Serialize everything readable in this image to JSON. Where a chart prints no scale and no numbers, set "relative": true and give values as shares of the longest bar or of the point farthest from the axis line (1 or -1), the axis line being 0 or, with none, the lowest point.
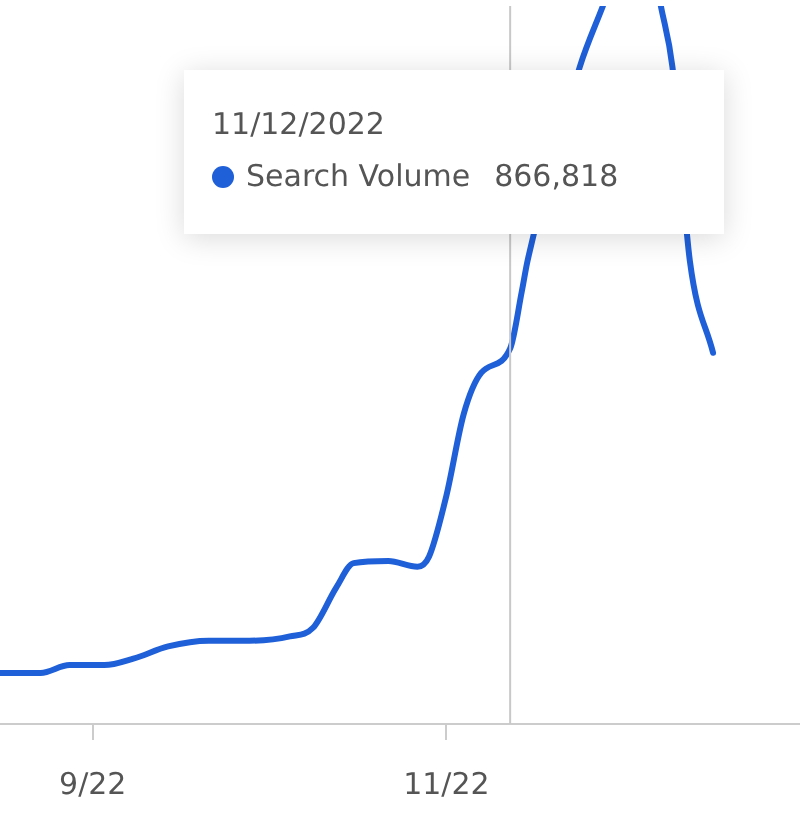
{
  "chart_data": {
    "type": "line",
    "relative": true,
    "x": [
      "2022-08-16",
      "2022-08-23",
      "2022-08-28",
      "2022-09-03",
      "2022-09-08",
      "2022-09-14",
      "2022-09-21",
      "2022-09-28",
      "2022-10-05",
      "2022-10-09",
      "2022-10-13",
      "2022-10-16",
      "2022-10-22",
      "2022-10-27",
      "2022-10-29",
      "2022-11-01",
      "2022-11-04",
      "2022-11-07",
      "2022-11-12",
      "2022-11-14",
      "2022-11-15",
      "2022-11-24",
      "2022-11-28",
      "2022-12-03",
      "2022-12-08",
      "2022-12-10",
      "2022-12-13",
      "2022-12-17"
    ],
    "series": [
      {
        "name": "Search Volume",
        "color": "#1f5fd8",
        "values": [
          0.071,
          0.071,
          0.082,
          0.082,
          0.091,
          0.108,
          0.116,
          0.116,
          0.122,
          0.134,
          0.19,
          0.224,
          0.227,
          0.219,
          0.233,
          0.318,
          0.432,
          0.489,
          0.523,
          0.602,
          0.645,
          0.915,
          1,
          null,
          1,
          0.915,
          0.645,
          0.517
        ]
      }
    ],
    "xlim": [
      "2022-08-16",
      "2023-01-01"
    ],
    "xticks": [
      {
        "value": "2022-09-01",
        "label": "9/22"
      },
      {
        "value": "2022-11-01",
        "label": "11/22"
      }
    ],
    "marker": "none",
    "line_style": "solid",
    "legend": "top",
    "ref_lines": [
      {
        "axis": "x",
        "value": "2022-11-12",
        "label": null,
        "color": "#c8c8c8"
      }
    ],
    "annotations": [
      "11/12/2022",
      "866,818"
    ]
  }
}
